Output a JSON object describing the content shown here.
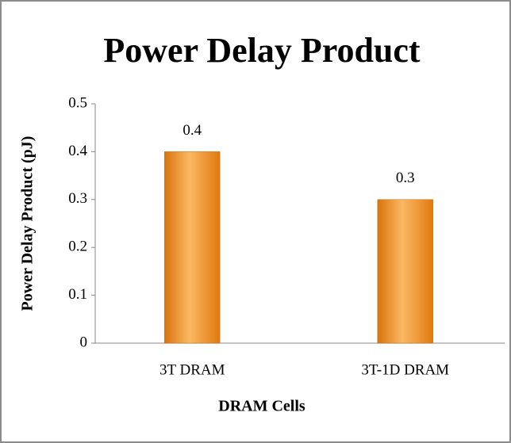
{
  "chart_data": {
    "type": "bar",
    "title": "Power Delay Product",
    "xlabel": "DRAM Cells",
    "ylabel": "Power Delay Product (pJ)",
    "categories": [
      "3T DRAM",
      "3T-1D DRAM"
    ],
    "values": [
      0.4,
      0.3
    ],
    "color": "#f28c1e",
    "ylim": [
      0,
      0.5
    ],
    "yticks": [
      0,
      0.1,
      0.2,
      0.3,
      0.4,
      0.5
    ],
    "grid": false
  }
}
